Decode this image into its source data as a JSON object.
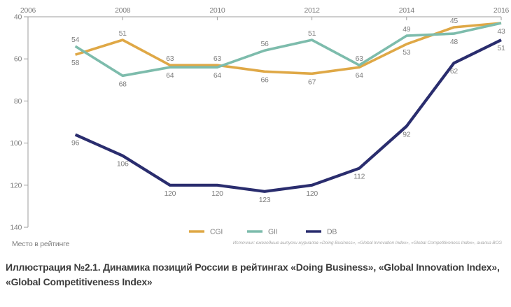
{
  "chart_data": {
    "type": "line",
    "caption": "Иллюстрация №2.1. Динамика позиций России в рейтингах «Doing Business», «Global Innovation Index», «Global Competitiveness Index»",
    "ylabel": "Место в рейтинге",
    "source": "Источник: ежегодные выпуски журналов «Doing Business», «Global Innovation Index», «Global Competitiveness Index», анализ BCG",
    "x": [
      2007,
      2008,
      2009,
      2010,
      2011,
      2012,
      2013,
      2014,
      2015,
      2016
    ],
    "x_ticks": [
      2006,
      2008,
      2010,
      2012,
      2014,
      2016
    ],
    "y_ticks": [
      40,
      60,
      80,
      100,
      120,
      140
    ],
    "xlim": [
      2006,
      2016
    ],
    "ylim": [
      40,
      140
    ],
    "y_axis_inverted": true,
    "grid": false,
    "legend_position": "bottom-center",
    "axis_color": "#9e9e9e",
    "label_color": "#7e7e7e",
    "series": [
      {
        "name": "CGI",
        "color": "#DFA846",
        "stroke_width": 3.6,
        "values": [
          58,
          51,
          63,
          63,
          66,
          67,
          64,
          53,
          45,
          43
        ],
        "label_side": [
          "below",
          "above",
          "above",
          "above",
          "below",
          "below",
          "below",
          "below",
          "above",
          "none"
        ]
      },
      {
        "name": "GII",
        "color": "#7DBCAC",
        "stroke_width": 3.6,
        "values": [
          54,
          68,
          64,
          64,
          56,
          51,
          63,
          49,
          48,
          43
        ],
        "label_side": [
          "above",
          "below",
          "below",
          "below",
          "above",
          "above",
          "above",
          "above",
          "below",
          "below"
        ]
      },
      {
        "name": "DB",
        "color": "#2A2D6E",
        "stroke_width": 4.2,
        "values": [
          96,
          106,
          120,
          120,
          123,
          120,
          112,
          92,
          62,
          51
        ],
        "label_side": [
          "below",
          "below",
          "below",
          "below",
          "below",
          "below",
          "below",
          "below",
          "below",
          "below"
        ]
      }
    ],
    "legend": [
      "CGI",
      "GII",
      "DB"
    ]
  }
}
